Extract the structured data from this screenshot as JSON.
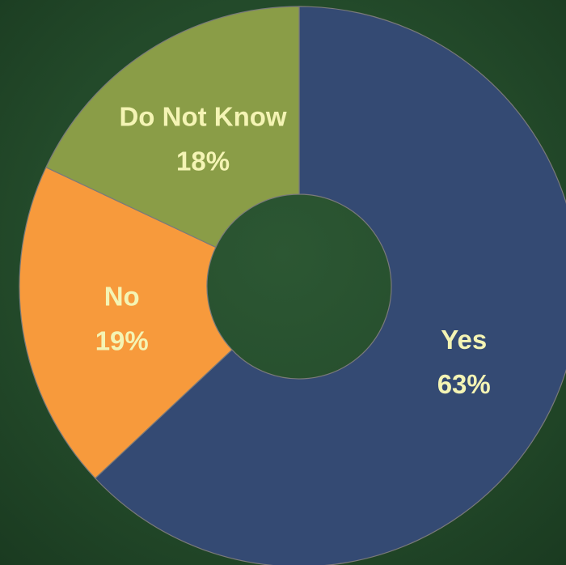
{
  "chart_data": {
    "type": "donut",
    "categories": [
      "Yes",
      "No",
      "Do Not Know"
    ],
    "values": [
      63,
      19,
      18
    ],
    "value_labels": [
      "63%",
      "19%",
      "18%"
    ],
    "colors": [
      "#344a73",
      "#f79a3c",
      "#8a9d47"
    ],
    "label_color": "#f4f4b4"
  }
}
